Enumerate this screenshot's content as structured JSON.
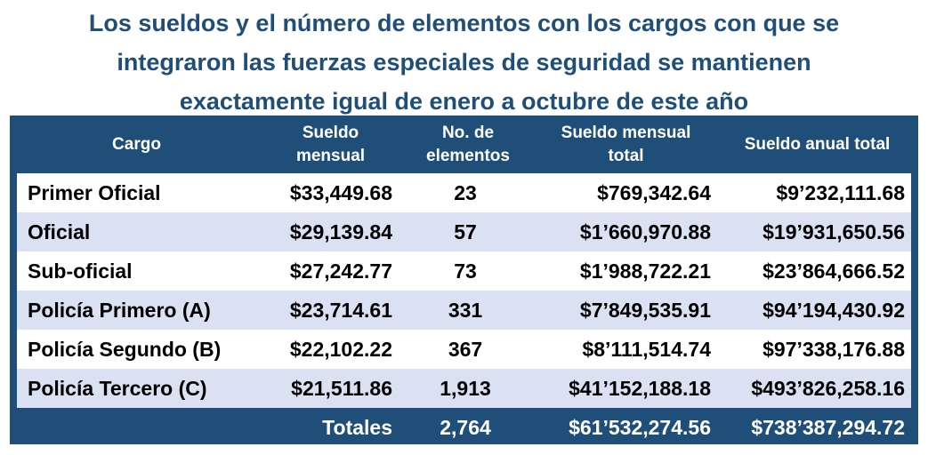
{
  "title": {
    "line1": "Los sueldos y el número de elementos con los cargos con que se",
    "line2": "integraron las fuerzas especiales de seguridad se mantienen",
    "line3": "exactamente igual de enero a octubre de este año"
  },
  "table": {
    "headers": {
      "cargo": "Cargo",
      "sueldo_mensual_1": "Sueldo",
      "sueldo_mensual_2": "mensual",
      "num_elementos_1": "No. de",
      "num_elementos_2": "elementos",
      "sueldo_total_1": "Sueldo mensual",
      "sueldo_total_2": "total",
      "sueldo_anual": "Sueldo anual total"
    },
    "rows": [
      {
        "cargo": "Primer Oficial",
        "sueldo": "$33,449.68",
        "num": "23",
        "total": "$769,342.64",
        "anual": "$9’232,111.68"
      },
      {
        "cargo": "Oficial",
        "sueldo": "$29,139.84",
        "num": "57",
        "total": "$1’660,970.88",
        "anual": "$19’931,650.56"
      },
      {
        "cargo": "Sub-oficial",
        "sueldo": "$27,242.77",
        "num": "73",
        "total": "$1’988,722.21",
        "anual": "$23’864,666.52"
      },
      {
        "cargo": "Policía Primero (A)",
        "sueldo": "$23,714.61",
        "num": "331",
        "total": "$7’849,535.91",
        "anual": "$94’194,430.92"
      },
      {
        "cargo": "Policía Segundo (B)",
        "sueldo": "$22,102.22",
        "num": "367",
        "total": "$8’111,514.74",
        "anual": "$97’338,176.88"
      },
      {
        "cargo": "Policía Tercero (C)",
        "sueldo": "$21,511.86",
        "num": "1,913",
        "total": "$41’152,188.18",
        "anual": "$493’826,258.16"
      }
    ],
    "totals": {
      "label": "Totales",
      "num": "2,764",
      "total": "$61’532,274.56",
      "anual": "$738’387,294.72"
    }
  },
  "colors": {
    "header_bg": "#1f4e79",
    "title": "#1f4e79",
    "band": "#d9e1f2"
  }
}
